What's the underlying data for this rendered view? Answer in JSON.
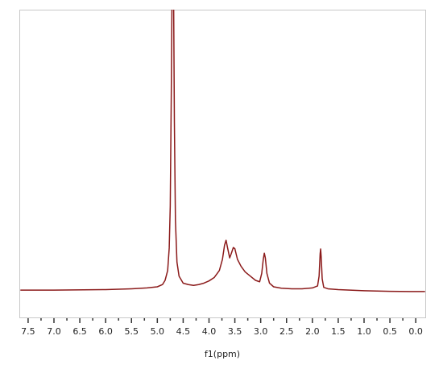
{
  "chart_data": {
    "type": "line",
    "xlabel": "f1(ppm)",
    "xlim": [
      7.67,
      -0.2
    ],
    "ylim": [
      -1,
      10
    ],
    "xticks": [
      {
        "value": 7.5,
        "label": "7.5"
      },
      {
        "value": 7,
        "label": "7.0"
      },
      {
        "value": 6.5,
        "label": "6.5"
      },
      {
        "value": 6,
        "label": "6.0"
      },
      {
        "value": 5.5,
        "label": "5.5"
      },
      {
        "value": 5,
        "label": "5.0"
      },
      {
        "value": 4.5,
        "label": "4.5"
      },
      {
        "value": 4,
        "label": "4.0"
      },
      {
        "value": 3.5,
        "label": "3.5"
      },
      {
        "value": 3,
        "label": "3.0"
      },
      {
        "value": 2.5,
        "label": "2.5"
      },
      {
        "value": 2,
        "label": "2.0"
      },
      {
        "value": 1.5,
        "label": "1.5"
      },
      {
        "value": 1,
        "label": "1.0"
      },
      {
        "value": 0.5,
        "label": "0.5"
      },
      {
        "value": 0,
        "label": "0.0"
      }
    ],
    "xminorticks": [
      7.25,
      6.75,
      6.25,
      5.75,
      5.25,
      4.75,
      4.25,
      3.75,
      3.25,
      2.75,
      2.25,
      1.75,
      1.25,
      0.75,
      0.25
    ],
    "x": [
      7.65,
      7.0,
      6.0,
      5.5,
      5.2,
      5.0,
      4.9,
      4.85,
      4.8,
      4.77,
      4.75,
      4.73,
      4.71,
      4.69,
      4.67,
      4.65,
      4.62,
      4.58,
      4.5,
      4.4,
      4.3,
      4.2,
      4.1,
      4.0,
      3.9,
      3.8,
      3.74,
      3.7,
      3.67,
      3.64,
      3.6,
      3.57,
      3.53,
      3.5,
      3.45,
      3.38,
      3.3,
      3.2,
      3.1,
      3.02,
      2.98,
      2.95,
      2.93,
      2.91,
      2.88,
      2.83,
      2.75,
      2.6,
      2.4,
      2.2,
      2.0,
      1.9,
      1.87,
      1.85,
      1.84,
      1.83,
      1.81,
      1.78,
      1.7,
      1.5,
      1.0,
      0.5,
      0.0,
      -0.18
    ],
    "series": [
      {
        "color": "#8b1a1a",
        "values": [
          0.0,
          0.0,
          0.02,
          0.05,
          0.08,
          0.12,
          0.2,
          0.35,
          0.7,
          1.5,
          3,
          7,
          12,
          12,
          6,
          2.5,
          1.0,
          0.5,
          0.25,
          0.2,
          0.17,
          0.2,
          0.25,
          0.33,
          0.45,
          0.7,
          1.1,
          1.6,
          1.78,
          1.5,
          1.15,
          1.3,
          1.52,
          1.48,
          1.1,
          0.85,
          0.65,
          0.5,
          0.35,
          0.3,
          0.6,
          1.1,
          1.32,
          1.15,
          0.6,
          0.25,
          0.12,
          0.07,
          0.05,
          0.05,
          0.08,
          0.15,
          0.5,
          1.3,
          1.47,
          1.2,
          0.4,
          0.1,
          0.05,
          0.02,
          -0.02,
          -0.04,
          -0.05,
          -0.05
        ]
      }
    ]
  }
}
